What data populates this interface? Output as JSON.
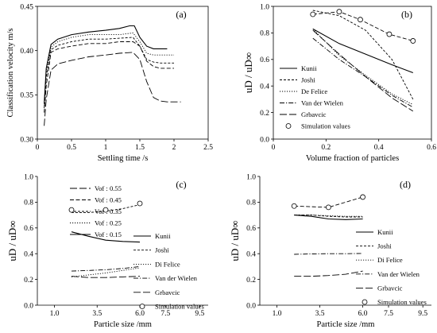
{
  "chart_data": [
    {
      "id": "a",
      "type": "line",
      "panel_label": "(a)",
      "xlabel": "Settling time /s",
      "ylabel": "Classification velocity m/s",
      "xlim": [
        0,
        2.5
      ],
      "ylim": [
        0.3,
        0.45
      ],
      "xticks": [
        0,
        0.5,
        1,
        1.5,
        2,
        2.5
      ],
      "xtick_labels": [
        "0",
        "0.5",
        "1",
        "1.5",
        "2",
        "2.5"
      ],
      "yticks": [
        0.3,
        0.35,
        0.4,
        0.45
      ],
      "ytick_labels": [
        "0.30",
        "0.35",
        "0.40",
        "0.45"
      ],
      "grid": false,
      "legend_position": "bottom-left",
      "series": [
        {
          "name": "Vof : 0.55",
          "dash": "long-dash",
          "x": [
            0.1,
            0.13,
            0.2,
            0.3,
            0.5,
            0.75,
            1.0,
            1.2,
            1.4,
            1.5,
            1.6,
            1.7,
            1.8,
            1.9,
            2.0,
            2.1
          ],
          "y": [
            0.315,
            0.345,
            0.378,
            0.385,
            0.389,
            0.393,
            0.395,
            0.397,
            0.398,
            0.39,
            0.365,
            0.347,
            0.343,
            0.342,
            0.342,
            0.342
          ]
        },
        {
          "name": "Vof : 0.45",
          "dash": "dash",
          "x": [
            0.1,
            0.13,
            0.2,
            0.3,
            0.5,
            0.75,
            1.0,
            1.2,
            1.4,
            1.5,
            1.6,
            1.7,
            1.8,
            1.9,
            2.0
          ],
          "y": [
            0.33,
            0.36,
            0.398,
            0.402,
            0.405,
            0.408,
            0.408,
            0.41,
            0.41,
            0.405,
            0.388,
            0.382,
            0.38,
            0.38,
            0.38
          ]
        },
        {
          "name": "Vof : 0.35",
          "dash": "short-dash",
          "x": [
            0.1,
            0.13,
            0.2,
            0.3,
            0.5,
            0.75,
            1.0,
            1.2,
            1.4,
            1.5,
            1.6,
            1.7,
            1.8,
            1.9,
            2.0
          ],
          "y": [
            0.335,
            0.37,
            0.401,
            0.406,
            0.41,
            0.413,
            0.413,
            0.414,
            0.415,
            0.405,
            0.39,
            0.387,
            0.386,
            0.386,
            0.386
          ]
        },
        {
          "name": "Vof : 0.25",
          "dash": "dot",
          "x": [
            0.1,
            0.13,
            0.2,
            0.3,
            0.5,
            0.75,
            1.0,
            1.2,
            1.4,
            1.5,
            1.6,
            1.7,
            1.8,
            1.9,
            2.0
          ],
          "y": [
            0.338,
            0.375,
            0.404,
            0.41,
            0.415,
            0.418,
            0.418,
            0.418,
            0.42,
            0.41,
            0.397,
            0.395,
            0.395,
            0.395,
            0.395
          ]
        },
        {
          "name": "Vof : 0.15",
          "dash": "solid",
          "x": [
            0.1,
            0.13,
            0.2,
            0.3,
            0.5,
            0.75,
            1.0,
            1.2,
            1.35,
            1.42,
            1.5,
            1.6,
            1.7,
            1.8,
            1.9
          ],
          "y": [
            0.34,
            0.38,
            0.407,
            0.413,
            0.418,
            0.421,
            0.423,
            0.425,
            0.428,
            0.428,
            0.415,
            0.405,
            0.402,
            0.402,
            0.402
          ]
        }
      ]
    },
    {
      "id": "b",
      "type": "line",
      "panel_label": "(b)",
      "xlabel": "Volume fraction of particles",
      "ylabel": "uD / uD∞",
      "xlim": [
        0,
        0.6
      ],
      "ylim": [
        0,
        1.0
      ],
      "xticks": [
        0,
        0.2,
        0.4,
        0.6
      ],
      "xtick_labels": [
        "0",
        "0.2",
        "0.4",
        "0.6"
      ],
      "yticks": [
        0,
        0.2,
        0.4,
        0.6,
        0.8,
        1.0
      ],
      "ytick_labels": [
        "0.0",
        "0.2",
        "0.4",
        "0.6",
        "0.8",
        "1.0"
      ],
      "grid": false,
      "legend_position": "bottom-left",
      "series": [
        {
          "name": "Kunii",
          "dash": "solid",
          "x": [
            0.15,
            0.25,
            0.35,
            0.45,
            0.53
          ],
          "y": [
            0.83,
            0.72,
            0.64,
            0.56,
            0.5
          ]
        },
        {
          "name": "Joshi",
          "dash": "short-dash",
          "x": [
            0.15,
            0.25,
            0.35,
            0.45,
            0.53
          ],
          "y": [
            0.97,
            0.93,
            0.82,
            0.6,
            0.3
          ]
        },
        {
          "name": "De Felice",
          "dash": "dot",
          "x": [
            0.15,
            0.25,
            0.35,
            0.45,
            0.53
          ],
          "y": [
            0.83,
            0.63,
            0.48,
            0.34,
            0.26
          ]
        },
        {
          "name": "Van der Wielen",
          "dash": "dash-dot",
          "x": [
            0.15,
            0.25,
            0.35,
            0.45,
            0.53
          ],
          "y": [
            0.76,
            0.6,
            0.47,
            0.33,
            0.24
          ]
        },
        {
          "name": "Grbavcic",
          "dash": "long-dash",
          "x": [
            0.15,
            0.25,
            0.35,
            0.45,
            0.53
          ],
          "y": [
            0.82,
            0.64,
            0.47,
            0.31,
            0.21
          ]
        },
        {
          "name": "Simulation values",
          "dash": "dash",
          "marker": "circle",
          "x": [
            0.15,
            0.25,
            0.33,
            0.44,
            0.53
          ],
          "y": [
            0.94,
            0.96,
            0.9,
            0.79,
            0.74
          ]
        }
      ]
    },
    {
      "id": "c",
      "type": "line",
      "panel_label": "(c)",
      "xlabel": "Particle size /mm",
      "ylabel": "uD / uD∞",
      "xlim": [
        0,
        10
      ],
      "ylim": [
        0,
        1.0
      ],
      "xticks": [
        1,
        3.5,
        6,
        7.5,
        9.5
      ],
      "xtick_labels": [
        "1.0",
        "3.5",
        "6.0",
        "7.5",
        "9.5"
      ],
      "yticks": [
        0,
        0.2,
        0.4,
        0.6,
        0.8,
        1.0
      ],
      "ytick_labels": [
        "0.0",
        "0.2",
        "0.4",
        "0.6",
        "0.8",
        "1.0"
      ],
      "grid": false,
      "legend_position": "right",
      "series": [
        {
          "name": "Kunii",
          "dash": "solid",
          "x": [
            2,
            3,
            4,
            5,
            6
          ],
          "y": [
            0.57,
            0.535,
            0.505,
            0.495,
            0.49
          ]
        },
        {
          "name": "Joshi",
          "dash": "short-dash",
          "x": [
            2,
            3,
            4,
            5,
            6
          ],
          "y": [
            0.72,
            0.72,
            0.73,
            0.75,
            0.78
          ]
        },
        {
          "name": "Di Felice",
          "dash": "dot",
          "x": [
            2,
            3,
            4,
            5,
            6
          ],
          "y": [
            0.22,
            0.235,
            0.25,
            0.27,
            0.29
          ]
        },
        {
          "name": "Van der Wielen",
          "dash": "dash-dot",
          "x": [
            2,
            3,
            4,
            5,
            6
          ],
          "y": [
            0.265,
            0.27,
            0.275,
            0.285,
            0.3
          ]
        },
        {
          "name": "Grbavcic",
          "dash": "long-dash",
          "x": [
            2,
            3,
            4,
            5,
            6
          ],
          "y": [
            0.225,
            0.215,
            0.215,
            0.22,
            0.225
          ]
        },
        {
          "name": "Simulation values",
          "dash": "none",
          "marker": "circle",
          "x": [
            2,
            4,
            6
          ],
          "y": [
            0.74,
            0.74,
            0.79
          ]
        }
      ]
    },
    {
      "id": "d",
      "type": "line",
      "panel_label": "(d)",
      "xlabel": "Particle size /mm",
      "ylabel": "uD / uD∞",
      "xlim": [
        0,
        10
      ],
      "ylim": [
        0,
        1.0
      ],
      "xticks": [
        1,
        3.5,
        6,
        7.5,
        9.5
      ],
      "xtick_labels": [
        "1.0",
        "3.5",
        "6.0",
        "7.5",
        "9.5"
      ],
      "yticks": [
        0,
        0.2,
        0.4,
        0.6,
        0.8,
        1.0
      ],
      "ytick_labels": [
        "0.0",
        "0.2",
        "0.4",
        "0.6",
        "0.8",
        "1.0"
      ],
      "grid": false,
      "legend_position": "right",
      "series": [
        {
          "name": "Kunii",
          "dash": "solid",
          "x": [
            2,
            3,
            4,
            5,
            6
          ],
          "y": [
            0.7,
            0.69,
            0.67,
            0.665,
            0.67
          ]
        },
        {
          "name": "Joshi",
          "dash": "short-dash",
          "x": [
            2,
            3,
            4,
            5,
            6
          ],
          "y": [
            0.7,
            0.7,
            0.69,
            0.685,
            0.685
          ]
        },
        {
          "name": "Di Felice",
          "dash": "dot",
          "x": [
            2,
            3,
            4,
            5,
            6
          ],
          "y": [
            0.7,
            0.7,
            0.695,
            0.69,
            0.69
          ]
        },
        {
          "name": "Van der Wielen",
          "dash": "dash-dot",
          "x": [
            2,
            3,
            4,
            5,
            6
          ],
          "y": [
            0.395,
            0.398,
            0.4,
            0.4,
            0.402
          ]
        },
        {
          "name": "Grbavcic",
          "dash": "long-dash",
          "x": [
            2,
            3,
            4,
            5,
            6
          ],
          "y": [
            0.225,
            0.225,
            0.23,
            0.24,
            0.265
          ]
        },
        {
          "name": "Simulation values",
          "dash": "dash",
          "marker": "circle",
          "x": [
            2,
            4,
            6
          ],
          "y": [
            0.77,
            0.76,
            0.84
          ]
        }
      ]
    }
  ]
}
